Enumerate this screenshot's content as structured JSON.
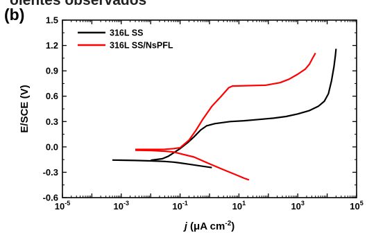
{
  "page_fragment": "oientes observados",
  "panel_label": "(b)",
  "chart_data": {
    "type": "line",
    "title": "",
    "xlabel": "j (μA cm⁻²)",
    "xlabel_parts": {
      "italic": "j",
      "rest": " (μA cm",
      "sup": "-2",
      "close": ")"
    },
    "ylabel": "E/SCE (V)",
    "x_scale": "log",
    "xlim": [
      1e-05,
      100000
    ],
    "ylim": [
      -0.6,
      1.5
    ],
    "x_ticks": [
      1e-05,
      0.001,
      0.1,
      10,
      1000,
      100000
    ],
    "x_tick_labels": [
      {
        "base": "10",
        "exp": "-5"
      },
      {
        "base": "10",
        "exp": "-3"
      },
      {
        "base": "10",
        "exp": "-1"
      },
      {
        "base": "10",
        "exp": "1"
      },
      {
        "base": "10",
        "exp": "3"
      },
      {
        "base": "10",
        "exp": "5"
      }
    ],
    "y_ticks": [
      -0.6,
      -0.3,
      0.0,
      0.3,
      0.6,
      0.9,
      1.2,
      1.5
    ],
    "y_tick_labels": [
      "-0.6",
      "-0.3",
      "0.0",
      "0.3",
      "0.6",
      "0.9",
      "1.2",
      "1.5"
    ],
    "grid": false,
    "legend_position": "top-left",
    "series": [
      {
        "name": "316L SS",
        "color": "#000000",
        "cathodic": [
          {
            "x": 0.0005,
            "y": -0.155
          },
          {
            "x": 0.001,
            "y": -0.157
          },
          {
            "x": 0.003,
            "y": -0.16
          },
          {
            "x": 0.01,
            "y": -0.165
          },
          {
            "x": 0.03,
            "y": -0.172
          },
          {
            "x": 0.06,
            "y": -0.18
          },
          {
            "x": 0.1,
            "y": -0.19
          },
          {
            "x": 0.2,
            "y": -0.205
          },
          {
            "x": 0.5,
            "y": -0.225
          },
          {
            "x": 1.2,
            "y": -0.245
          }
        ],
        "anodic": [
          {
            "x": 0.01,
            "y": -0.158
          },
          {
            "x": 0.025,
            "y": -0.14
          },
          {
            "x": 0.04,
            "y": -0.11
          },
          {
            "x": 0.06,
            "y": -0.07
          },
          {
            "x": 0.1,
            "y": -0.02
          },
          {
            "x": 0.18,
            "y": 0.05
          },
          {
            "x": 0.3,
            "y": 0.12
          },
          {
            "x": 0.5,
            "y": 0.2
          },
          {
            "x": 0.8,
            "y": 0.25
          },
          {
            "x": 1.5,
            "y": 0.275
          },
          {
            "x": 5,
            "y": 0.3
          },
          {
            "x": 15,
            "y": 0.31
          },
          {
            "x": 50,
            "y": 0.325
          },
          {
            "x": 150,
            "y": 0.34
          },
          {
            "x": 400,
            "y": 0.36
          },
          {
            "x": 1000,
            "y": 0.39
          },
          {
            "x": 2500,
            "y": 0.43
          },
          {
            "x": 5000,
            "y": 0.48
          },
          {
            "x": 8000,
            "y": 0.54
          },
          {
            "x": 11000,
            "y": 0.63
          },
          {
            "x": 14000,
            "y": 0.78
          },
          {
            "x": 17000,
            "y": 0.95
          },
          {
            "x": 19000,
            "y": 1.08
          },
          {
            "x": 20000,
            "y": 1.16
          }
        ]
      },
      {
        "name": "316L SS/NsPFL",
        "color": "#ff0000",
        "cathodic": [
          {
            "x": 0.003,
            "y": -0.04
          },
          {
            "x": 0.01,
            "y": -0.042
          },
          {
            "x": 0.03,
            "y": -0.05
          },
          {
            "x": 0.06,
            "y": -0.06
          },
          {
            "x": 0.1,
            "y": -0.08
          },
          {
            "x": 0.3,
            "y": -0.12
          },
          {
            "x": 1,
            "y": -0.2
          },
          {
            "x": 3,
            "y": -0.27
          },
          {
            "x": 8,
            "y": -0.33
          },
          {
            "x": 15,
            "y": -0.37
          },
          {
            "x": 22,
            "y": -0.39
          }
        ],
        "anodic": [
          {
            "x": 0.003,
            "y": -0.03
          },
          {
            "x": 0.01,
            "y": -0.03
          },
          {
            "x": 0.03,
            "y": -0.028
          },
          {
            "x": 0.06,
            "y": -0.02
          },
          {
            "x": 0.1,
            "y": -0.01
          },
          {
            "x": 0.2,
            "y": 0.08
          },
          {
            "x": 0.35,
            "y": 0.2
          },
          {
            "x": 0.6,
            "y": 0.33
          },
          {
            "x": 1.2,
            "y": 0.48
          },
          {
            "x": 2.5,
            "y": 0.6
          },
          {
            "x": 4.5,
            "y": 0.7
          },
          {
            "x": 6,
            "y": 0.72
          },
          {
            "x": 20,
            "y": 0.725
          },
          {
            "x": 80,
            "y": 0.73
          },
          {
            "x": 250,
            "y": 0.76
          },
          {
            "x": 500,
            "y": 0.8
          },
          {
            "x": 1000,
            "y": 0.86
          },
          {
            "x": 1800,
            "y": 0.92
          },
          {
            "x": 2500,
            "y": 0.98
          },
          {
            "x": 3200,
            "y": 1.05
          },
          {
            "x": 4000,
            "y": 1.11
          }
        ]
      }
    ]
  }
}
